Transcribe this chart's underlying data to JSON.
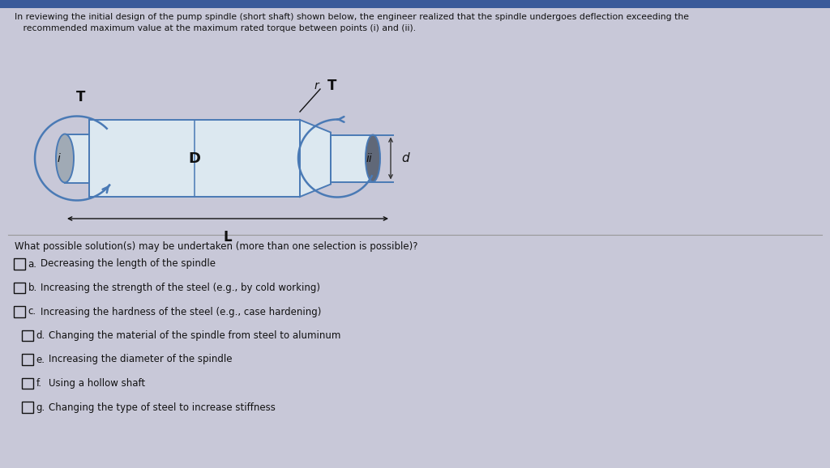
{
  "bg_color": "#c8c8d8",
  "top_bar_color": "#3a5a9a",
  "text_color": "#111111",
  "title_line1": "In reviewing the initial design of the pump spindle (short shaft) shown below, the engineer realized that the spindle undergoes deflection exceeding the",
  "title_line2": "   recommended maximum value at the maximum rated torque between points (i) and (ii).",
  "question_text": "What possible solution(s) may be undertaken (more than one selection is possible)?",
  "options": [
    [
      "a.",
      "Decreasing the length of the spindle"
    ],
    [
      "b.",
      "Increasing the strength of the steel (e.g., by cold working)"
    ],
    [
      "c.",
      "Increasing the hardness of the steel (e.g., case hardening)"
    ],
    [
      "d.",
      "Changing the material of the spindle from steel to aluminum"
    ],
    [
      "e.",
      "Increasing the diameter of the spindle"
    ],
    [
      "f.",
      "Using a hollow shaft"
    ],
    [
      "g.",
      "Changing the type of steel to increase stiffness"
    ]
  ],
  "spindle_line_color": "#4a7ab5",
  "spindle_fill_color": "#dce8f0",
  "bearing_fill_color": "#7a8a9a",
  "arrow_color": "#4a7ab5",
  "dim_line_color": "#333333"
}
